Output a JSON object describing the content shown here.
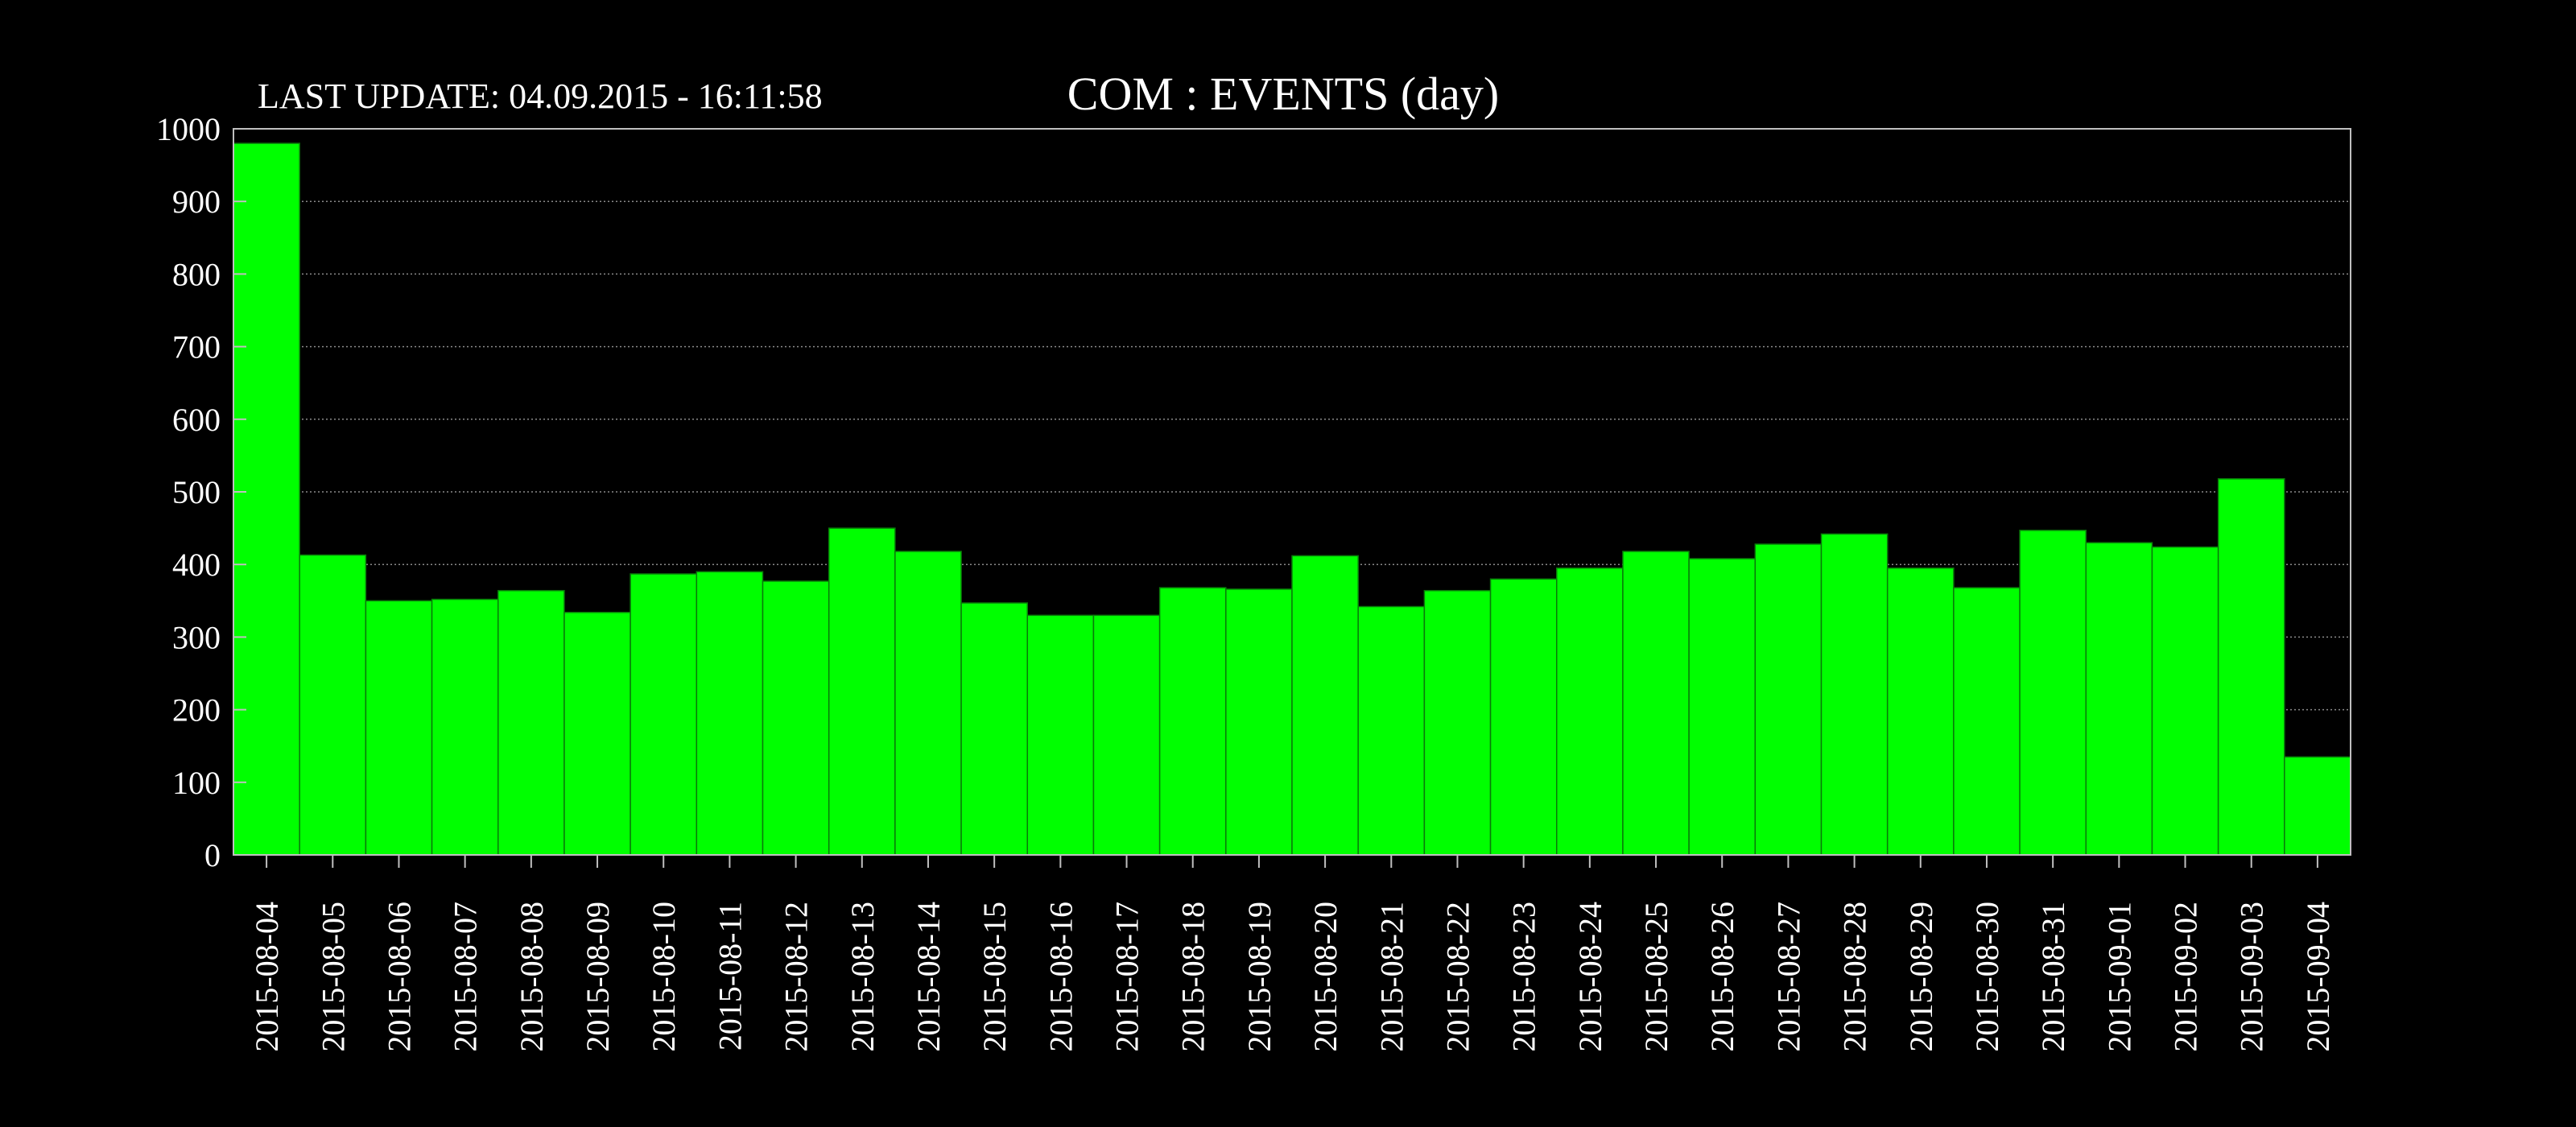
{
  "colors": {
    "background": "#000000",
    "bar_fill": "#00ff00",
    "bar_edge": "#0a7a0a",
    "grid": "#8a8a8a",
    "frame": "#bfbfbf",
    "text": "#ffffff"
  },
  "header": {
    "last_update": "LAST UPDATE: 04.09.2015 - 16:11:58",
    "title": "COM : EVENTS (day)"
  },
  "chart_data": {
    "type": "bar",
    "title": "COM : EVENTS (day)",
    "subtitle": "LAST UPDATE: 04.09.2015 - 16:11:58",
    "xlabel": "",
    "ylabel": "",
    "ylim": [
      0,
      1000
    ],
    "yticks": [
      0,
      100,
      200,
      300,
      400,
      500,
      600,
      700,
      800,
      900,
      1000
    ],
    "grid": true,
    "legend": "none",
    "categories": [
      "2015-08-04",
      "2015-08-05",
      "2015-08-06",
      "2015-08-07",
      "2015-08-08",
      "2015-08-09",
      "2015-08-10",
      "2015-08-11",
      "2015-08-12",
      "2015-08-13",
      "2015-08-14",
      "2015-08-15",
      "2015-08-16",
      "2015-08-17",
      "2015-08-18",
      "2015-08-19",
      "2015-08-20",
      "2015-08-21",
      "2015-08-22",
      "2015-08-23",
      "2015-08-24",
      "2015-08-25",
      "2015-08-26",
      "2015-08-27",
      "2015-08-28",
      "2015-08-29",
      "2015-08-30",
      "2015-08-31",
      "2015-09-01",
      "2015-09-02",
      "2015-09-03",
      "2015-09-04"
    ],
    "values": [
      980,
      413,
      350,
      352,
      364,
      334,
      387,
      390,
      377,
      450,
      418,
      347,
      330,
      330,
      368,
      366,
      412,
      342,
      364,
      380,
      395,
      418,
      408,
      428,
      442,
      395,
      368,
      447,
      430,
      424,
      518,
      135
    ]
  }
}
